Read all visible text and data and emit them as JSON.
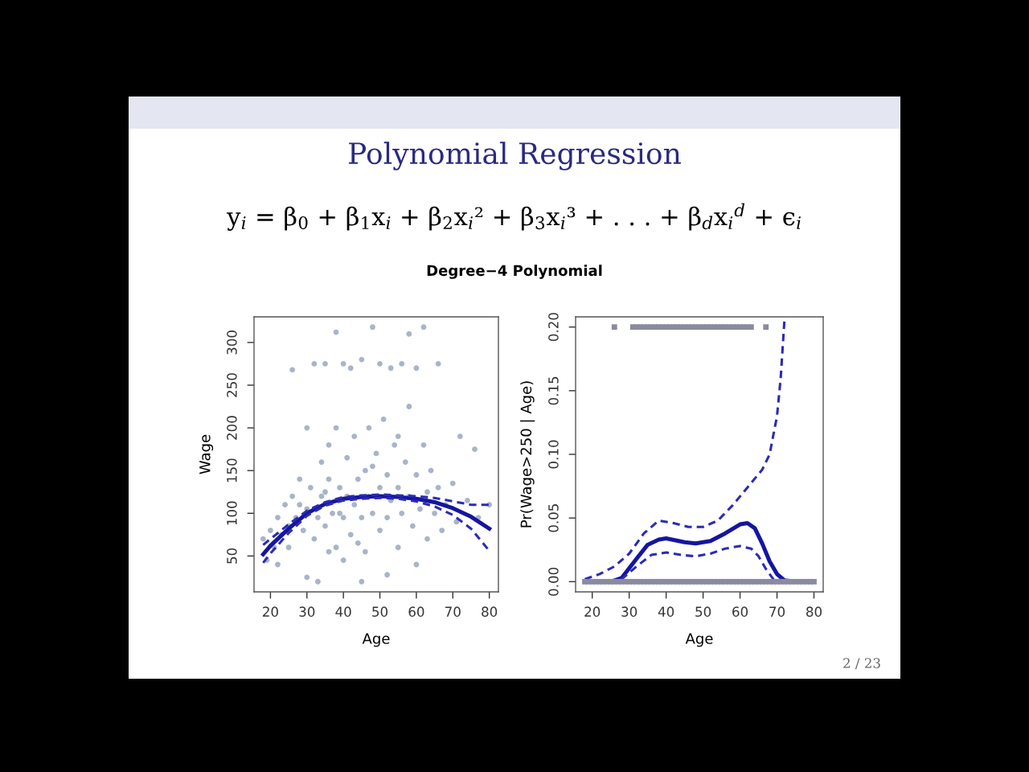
{
  "chart_data": [
    {
      "type": "scatter",
      "title": "Polynomial Regression",
      "subtitle": "y$_{i}$ = β$_{0}$ + β$_{1}$x$_{i}$ + β$_{2}$x$_{i}$² + β$_{3}$x$_{i}$³ + . . . + β$_{d}$x$_{i}$$^{d}$ + ϵ$_{i}$",
      "annotations": [
        "Degree−4 Polynomial",
        "2 / 23"
      ],
      "xlabel": "Age",
      "ylabel": "Wage",
      "xlim": [
        15.5,
        82.5
      ],
      "ylim": [
        8,
        330
      ],
      "xticks": [
        20,
        30,
        40,
        50,
        60,
        70,
        80
      ],
      "yticks": [
        50,
        100,
        150,
        200,
        250,
        300
      ],
      "grid": false,
      "series": [
        {
          "marker": "circle",
          "color": "#a9b4c8",
          "x": [
            18,
            19,
            20,
            21,
            22,
            23,
            24,
            25,
            25,
            26,
            26,
            27,
            28,
            29,
            30,
            30,
            31,
            32,
            32,
            33,
            34,
            34,
            35,
            35,
            36,
            36,
            37,
            38,
            38,
            38,
            39,
            40,
            40,
            41,
            41,
            42,
            42,
            43,
            43,
            44,
            45,
            45,
            46,
            46,
            47,
            47,
            48,
            48,
            49,
            50,
            50,
            50,
            51,
            52,
            52,
            53,
            53,
            54,
            55,
            55,
            56,
            56,
            57,
            58,
            58,
            58,
            59,
            60,
            60,
            61,
            62,
            62,
            63,
            63,
            64,
            65,
            66,
            66,
            67,
            68,
            70,
            71,
            72,
            74,
            76,
            77,
            80,
            30,
            33,
            45,
            52,
            40,
            60,
            22,
            36,
            44,
            48,
            55,
            28,
            35,
            39
          ],
          "values": [
            70,
            45,
            80,
            60,
            95,
            75,
            110,
            85,
            60,
            268,
            120,
            95,
            140,
            80,
            105,
            200,
            130,
            70,
            275,
            95,
            160,
            120,
            275,
            85,
            140,
            180,
            100,
            312,
            200,
            60,
            130,
            275,
            95,
            165,
            120,
            270,
            75,
            190,
            110,
            140,
            280,
            95,
            150,
            55,
            200,
            120,
            318,
            100,
            170,
            275,
            130,
            80,
            210,
            145,
            95,
            270,
            115,
            180,
            130,
            60,
            275,
            100,
            160,
            310,
            120,
            225,
            85,
            270,
            145,
            105,
            318,
            180,
            125,
            70,
            150,
            100,
            275,
            130,
            80,
            110,
            135,
            90,
            190,
            115,
            175,
            95,
            110,
            25,
            20,
            20,
            28,
            45,
            40,
            40,
            55,
            65,
            155,
            190,
            110,
            125,
            100
          ]
        },
        {
          "type": "line",
          "line_style": "solid",
          "color": "#1515a0",
          "x": [
            18,
            20,
            25,
            30,
            35,
            40,
            45,
            50,
            55,
            60,
            65,
            70,
            75,
            80
          ],
          "values": [
            52,
            62,
            82,
            100,
            111,
            117,
            119,
            120,
            119,
            117,
            113,
            106,
            96,
            82
          ]
        },
        {
          "type": "line",
          "line_style": "dashed",
          "color": "#2b2bb5",
          "x": [
            18,
            20,
            25,
            30,
            35,
            40,
            45,
            50,
            55,
            60,
            65,
            70,
            75,
            80
          ],
          "values": [
            63,
            70,
            87,
            103,
            113,
            119,
            121,
            122,
            121,
            120,
            118,
            114,
            110,
            110
          ]
        },
        {
          "type": "line",
          "line_style": "dashed",
          "color": "#2b2bb5",
          "x": [
            18,
            20,
            25,
            30,
            35,
            40,
            45,
            50,
            55,
            60,
            65,
            70,
            75,
            80
          ],
          "values": [
            42,
            53,
            77,
            97,
            109,
            115,
            117,
            118,
            117,
            114,
            108,
            98,
            82,
            56
          ]
        }
      ]
    },
    {
      "type": "line",
      "xlabel": "Age",
      "ylabel": "Pr(Wage>250 | Age)",
      "xlim": [
        15.5,
        82.5
      ],
      "ylim": [
        -0.008,
        0.208
      ],
      "xticks": [
        20,
        30,
        40,
        50,
        60,
        70,
        80
      ],
      "yticks": [
        {
          "value": 0,
          "label": "0.00"
        },
        0.05,
        {
          "value": 0.1,
          "label": "0.10"
        },
        0.15,
        {
          "value": 0.2,
          "label": "0.20"
        }
      ],
      "grid": false,
      "series": [
        {
          "line_style": "solid",
          "color": "#1515a0",
          "x": [
            18,
            25,
            28,
            32,
            35,
            38,
            40,
            45,
            48,
            52,
            56,
            60,
            62,
            64,
            66,
            68,
            70,
            72,
            75,
            80
          ],
          "values": [
            0,
            0,
            0.003,
            0.018,
            0.029,
            0.033,
            0.034,
            0.031,
            0.03,
            0.032,
            0.038,
            0.045,
            0.046,
            0.042,
            0.03,
            0.016,
            0.006,
            0.001,
            0,
            0
          ]
        },
        {
          "type": "line",
          "line_style": "dashed",
          "color": "#2b2bb5",
          "x": [
            18,
            22,
            26,
            30,
            34,
            38,
            42,
            46,
            50,
            54,
            58,
            62,
            66,
            68,
            70,
            71,
            72
          ],
          "values": [
            0.002,
            0.006,
            0.012,
            0.022,
            0.038,
            0.048,
            0.046,
            0.043,
            0.043,
            0.048,
            0.06,
            0.074,
            0.088,
            0.1,
            0.13,
            0.16,
            0.205
          ]
        },
        {
          "type": "line",
          "line_style": "dashed",
          "color": "#2b2bb5",
          "x": [
            18,
            26,
            28,
            32,
            36,
            40,
            44,
            48,
            52,
            56,
            60,
            63,
            65,
            67,
            69,
            72,
            80
          ],
          "values": [
            0,
            0,
            0.002,
            0.012,
            0.021,
            0.023,
            0.021,
            0.02,
            0.022,
            0.026,
            0.028,
            0.026,
            0.02,
            0.01,
            0.002,
            0,
            0
          ]
        },
        {
          "type": "scatter",
          "marker": "square",
          "color": "#8a8aa0",
          "x": [
            18,
            19,
            20,
            21,
            22,
            23,
            24,
            25,
            26,
            27,
            28,
            29,
            30,
            31,
            32,
            33,
            34,
            35,
            36,
            37,
            38,
            39,
            40,
            41,
            42,
            43,
            44,
            45,
            46,
            47,
            48,
            49,
            50,
            51,
            52,
            53,
            54,
            55,
            56,
            57,
            58,
            59,
            60,
            61,
            62,
            63,
            64,
            65,
            66,
            67,
            68,
            69,
            70,
            71,
            72,
            73,
            74,
            75,
            76,
            77,
            78,
            79,
            80
          ],
          "values": [
            0,
            0,
            0,
            0,
            0,
            0,
            0,
            0,
            0,
            0,
            0,
            0,
            0,
            0,
            0,
            0,
            0,
            0,
            0,
            0,
            0,
            0,
            0,
            0,
            0,
            0,
            0,
            0,
            0,
            0,
            0,
            0,
            0,
            0,
            0,
            0,
            0,
            0,
            0,
            0,
            0,
            0,
            0,
            0,
            0,
            0,
            0,
            0,
            0,
            0,
            0,
            0,
            0,
            0,
            0,
            0,
            0,
            0,
            0,
            0,
            0,
            0,
            0
          ]
        },
        {
          "type": "scatter",
          "marker": "square",
          "color": "#8a8aa0",
          "x": [
            26,
            31,
            32,
            33,
            34,
            35,
            36,
            37,
            38,
            39,
            40,
            41,
            42,
            43,
            44,
            45,
            46,
            47,
            48,
            49,
            50,
            51,
            52,
            53,
            54,
            55,
            56,
            57,
            58,
            59,
            60,
            61,
            62,
            63,
            67
          ],
          "values": [
            0.2,
            0.2,
            0.2,
            0.2,
            0.2,
            0.2,
            0.2,
            0.2,
            0.2,
            0.2,
            0.2,
            0.2,
            0.2,
            0.2,
            0.2,
            0.2,
            0.2,
            0.2,
            0.2,
            0.2,
            0.2,
            0.2,
            0.2,
            0.2,
            0.2,
            0.2,
            0.2,
            0.2,
            0.2,
            0.2,
            0.2,
            0.2,
            0.2,
            0.2,
            0.2
          ]
        }
      ]
    }
  ]
}
